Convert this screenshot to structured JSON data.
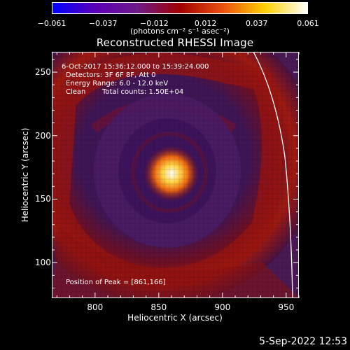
{
  "colorbar": {
    "ticks": [
      "−0.061",
      "−0.037",
      "−0.012",
      "0.012",
      "0.037",
      "0.061"
    ],
    "unit": "(photons cm⁻² s⁻¹ asec⁻²)",
    "colors": [
      "#0000ff",
      "#5a00b4",
      "#6e1a87",
      "#a00000",
      "#e85010",
      "#ffd000",
      "#ffffff"
    ]
  },
  "title": "Reconstructed RHESSI Image",
  "info": {
    "time_range": "6-Oct-2017 15:36:12.000 to 15:39:24.000",
    "detectors": "Detectors: 3F 6F 8F, Att 0",
    "energy": "Energy Range: 6.0 - 12.0 keV",
    "clean": "Clean",
    "counts": "Total counts: 1.50E+04",
    "peak": "Position of Peak = [861,166]"
  },
  "xlabel": "Heliocentric X (arcsec)",
  "ylabel": "Heliocentric Y (arcsec)",
  "timestamp": "5-Sep-2022 12:53",
  "chart_data": {
    "type": "heatmap",
    "title": "Reconstructed RHESSI Image",
    "xlabel": "Heliocentric X (arcsec)",
    "ylabel": "Heliocentric Y (arcsec)",
    "xlim": [
      766,
      960
    ],
    "ylim": [
      72,
      266
    ],
    "xticks": [
      800,
      850,
      900,
      950
    ],
    "yticks": [
      100,
      150,
      200,
      250
    ],
    "colorbar_range": [
      -0.061,
      0.061
    ],
    "peak": [
      861,
      166
    ]
  }
}
